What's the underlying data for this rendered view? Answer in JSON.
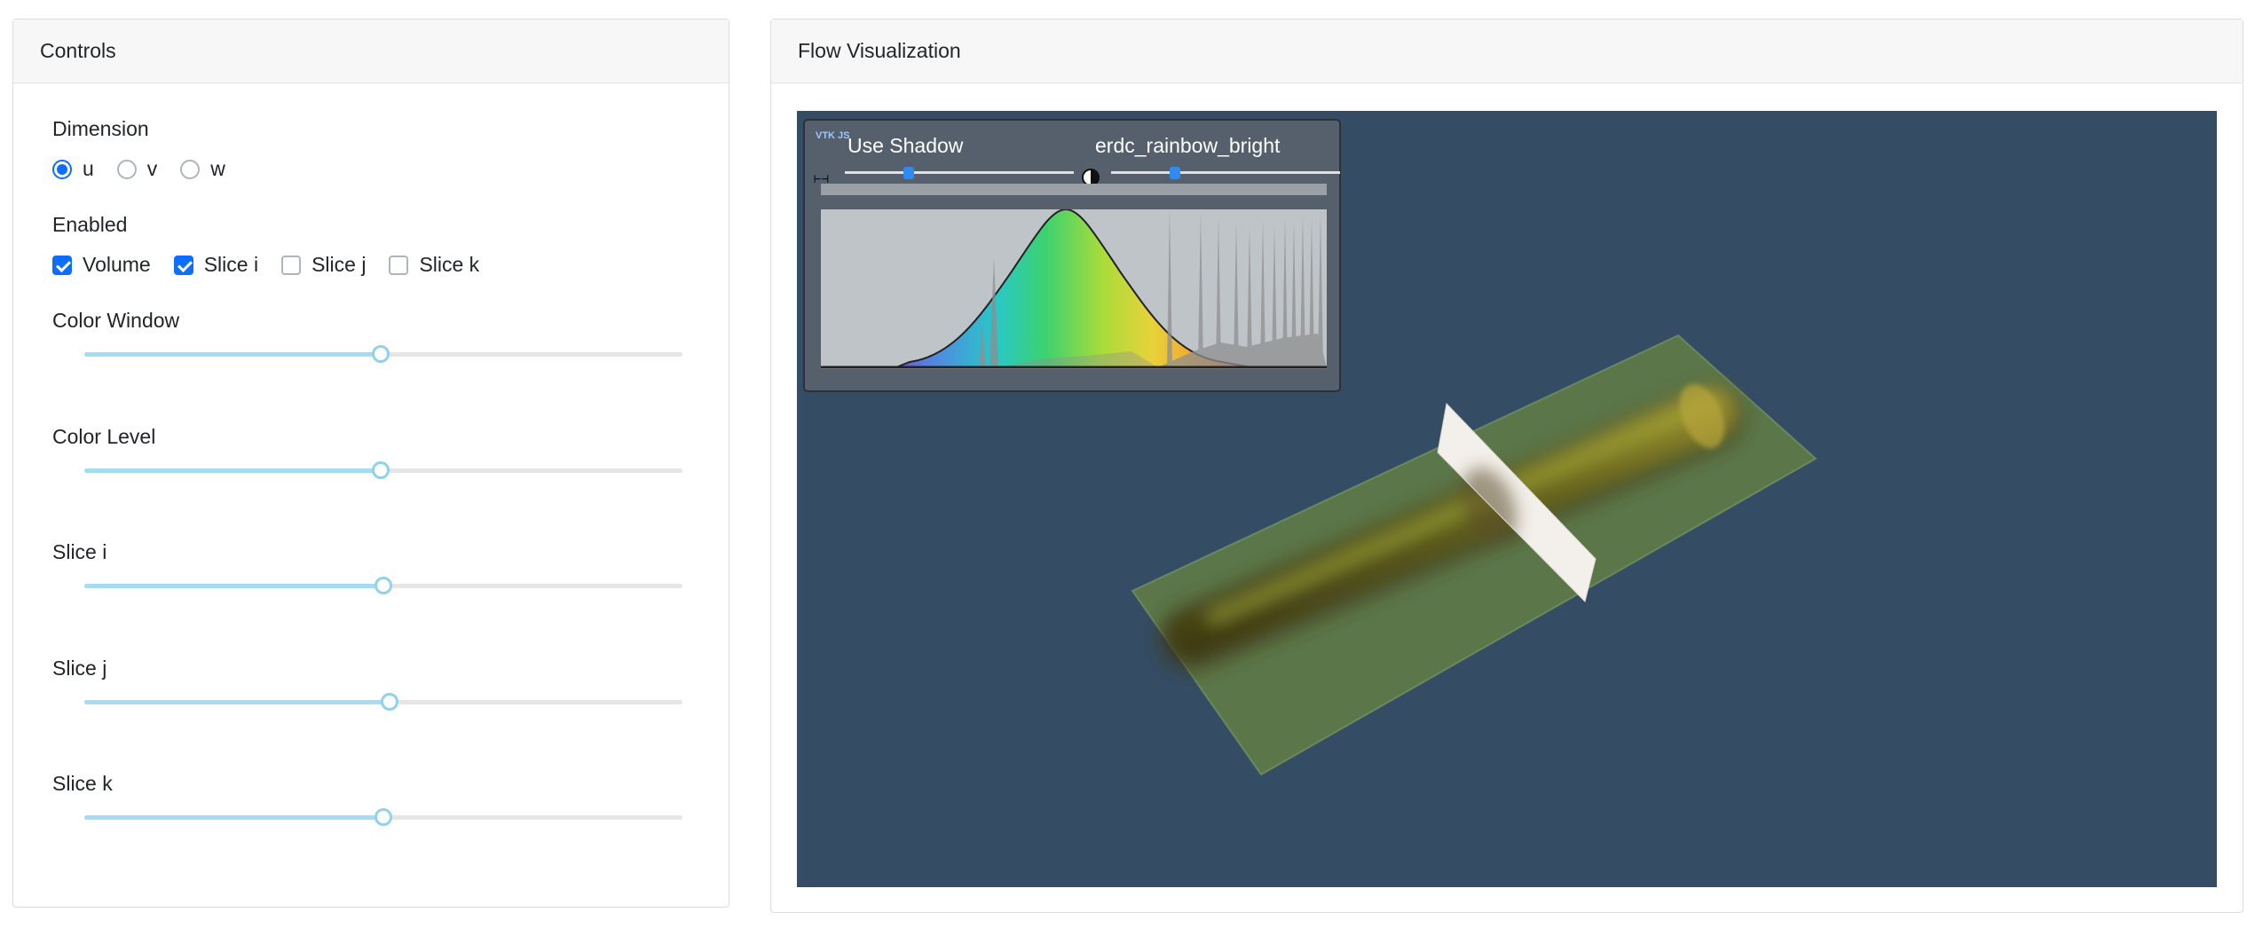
{
  "controls": {
    "title": "Controls",
    "dimension": {
      "label": "Dimension",
      "options": [
        "u",
        "v",
        "w"
      ],
      "selected": "u"
    },
    "enabled": {
      "label": "Enabled",
      "items": [
        {
          "label": "Volume",
          "checked": true
        },
        {
          "label": "Slice i",
          "checked": true
        },
        {
          "label": "Slice j",
          "checked": false
        },
        {
          "label": "Slice k",
          "checked": false
        }
      ]
    },
    "sliders": [
      {
        "label": "Color Window",
        "value_fraction": 0.495
      },
      {
        "label": "Color Level",
        "value_fraction": 0.495
      },
      {
        "label": "Slice i",
        "value_fraction": 0.5
      },
      {
        "label": "Slice j",
        "value_fraction": 0.51
      },
      {
        "label": "Slice k",
        "value_fraction": 0.5
      }
    ]
  },
  "viz": {
    "title": "Flow Visualization",
    "background_color": "#344d65",
    "tf_widget": {
      "logo_text": "VTK JS",
      "shadow_label": "Use Shadow",
      "shadow_slider_fraction": 0.28,
      "colormap_label": "erdc_rainbow_bright",
      "colormap_slider_fraction": 0.28
    }
  },
  "colors": {
    "accent": "#0d6efd",
    "slider_fill": "#a6dcf3",
    "slider_track": "#e6e6e6"
  }
}
